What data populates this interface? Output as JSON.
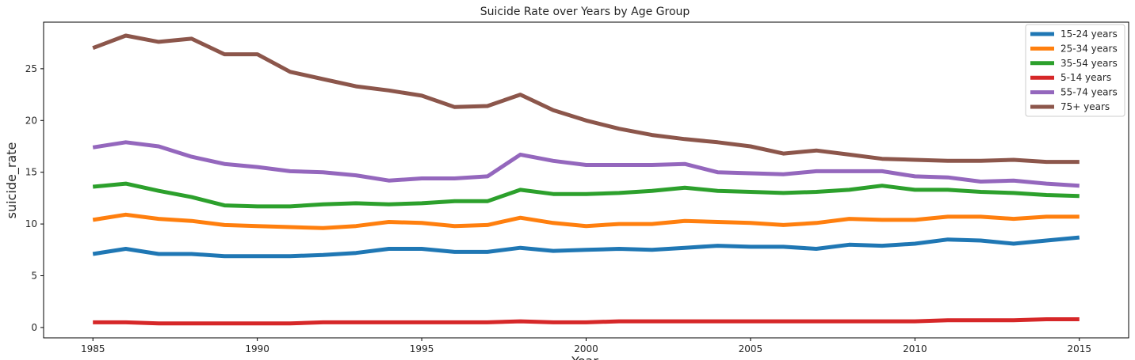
{
  "chart_data": {
    "type": "line",
    "title": "Suicide Rate over Years by Age Group",
    "xlabel": "Year",
    "ylabel": "suicide_rate",
    "xlim": [
      1983.5,
      2016.5
    ],
    "ylim": [
      -1,
      29.5
    ],
    "x_ticks": [
      1985,
      1990,
      1995,
      2000,
      2005,
      2010,
      2015
    ],
    "y_ticks": [
      0,
      5,
      10,
      15,
      20,
      25
    ],
    "grid": false,
    "legend_position": "top-right",
    "x": [
      1985,
      1986,
      1987,
      1988,
      1989,
      1990,
      1991,
      1992,
      1993,
      1994,
      1995,
      1996,
      1997,
      1998,
      1999,
      2000,
      2001,
      2002,
      2003,
      2004,
      2005,
      2006,
      2007,
      2008,
      2009,
      2010,
      2011,
      2012,
      2013,
      2014,
      2015
    ],
    "series": [
      {
        "name": "15-24 years",
        "color": "#1f77b4",
        "values": [
          7.1,
          7.6,
          7.1,
          7.1,
          6.9,
          6.9,
          6.9,
          7.0,
          7.2,
          7.6,
          7.6,
          7.3,
          7.3,
          7.7,
          7.4,
          7.5,
          7.6,
          7.5,
          7.7,
          7.9,
          7.8,
          7.8,
          7.6,
          8.0,
          7.9,
          8.1,
          8.5,
          8.4,
          8.1,
          8.4,
          8.7
        ]
      },
      {
        "name": "25-34 years",
        "color": "#ff7f0e",
        "values": [
          10.4,
          10.9,
          10.5,
          10.3,
          9.9,
          9.8,
          9.7,
          9.6,
          9.8,
          10.2,
          10.1,
          9.8,
          9.9,
          10.6,
          10.1,
          9.8,
          10.0,
          10.0,
          10.3,
          10.2,
          10.1,
          9.9,
          10.1,
          10.5,
          10.4,
          10.4,
          10.7,
          10.7,
          10.5,
          10.7,
          10.7
        ]
      },
      {
        "name": "35-54 years",
        "color": "#2ca02c",
        "values": [
          13.6,
          13.9,
          13.2,
          12.6,
          11.8,
          11.7,
          11.7,
          11.9,
          12.0,
          11.9,
          12.0,
          12.2,
          12.2,
          13.3,
          12.9,
          12.9,
          13.0,
          13.2,
          13.5,
          13.2,
          13.1,
          13.0,
          13.1,
          13.3,
          13.7,
          13.3,
          13.3,
          13.1,
          13.0,
          12.8,
          12.7
        ]
      },
      {
        "name": "5-14 years",
        "color": "#d62728",
        "values": [
          0.5,
          0.5,
          0.4,
          0.4,
          0.4,
          0.4,
          0.4,
          0.5,
          0.5,
          0.5,
          0.5,
          0.5,
          0.5,
          0.6,
          0.5,
          0.5,
          0.6,
          0.6,
          0.6,
          0.6,
          0.6,
          0.6,
          0.6,
          0.6,
          0.6,
          0.6,
          0.7,
          0.7,
          0.7,
          0.8,
          0.8
        ]
      },
      {
        "name": "55-74 years",
        "color": "#9467bd",
        "values": [
          17.4,
          17.9,
          17.5,
          16.5,
          15.8,
          15.5,
          15.1,
          15.0,
          14.7,
          14.2,
          14.4,
          14.4,
          14.6,
          16.7,
          16.1,
          15.7,
          15.7,
          15.7,
          15.8,
          15.0,
          14.9,
          14.8,
          15.1,
          15.1,
          15.1,
          14.6,
          14.5,
          14.1,
          14.2,
          13.9,
          13.7
        ]
      },
      {
        "name": "75+ years",
        "color": "#8c564b",
        "values": [
          27.0,
          28.2,
          27.6,
          27.9,
          26.4,
          26.4,
          24.7,
          24.0,
          23.3,
          22.9,
          22.4,
          21.3,
          21.4,
          22.5,
          21.0,
          20.0,
          19.2,
          18.6,
          18.2,
          17.9,
          17.5,
          16.8,
          17.1,
          16.7,
          16.3,
          16.2,
          16.1,
          16.1,
          16.2,
          16.0,
          16.0
        ]
      }
    ]
  }
}
